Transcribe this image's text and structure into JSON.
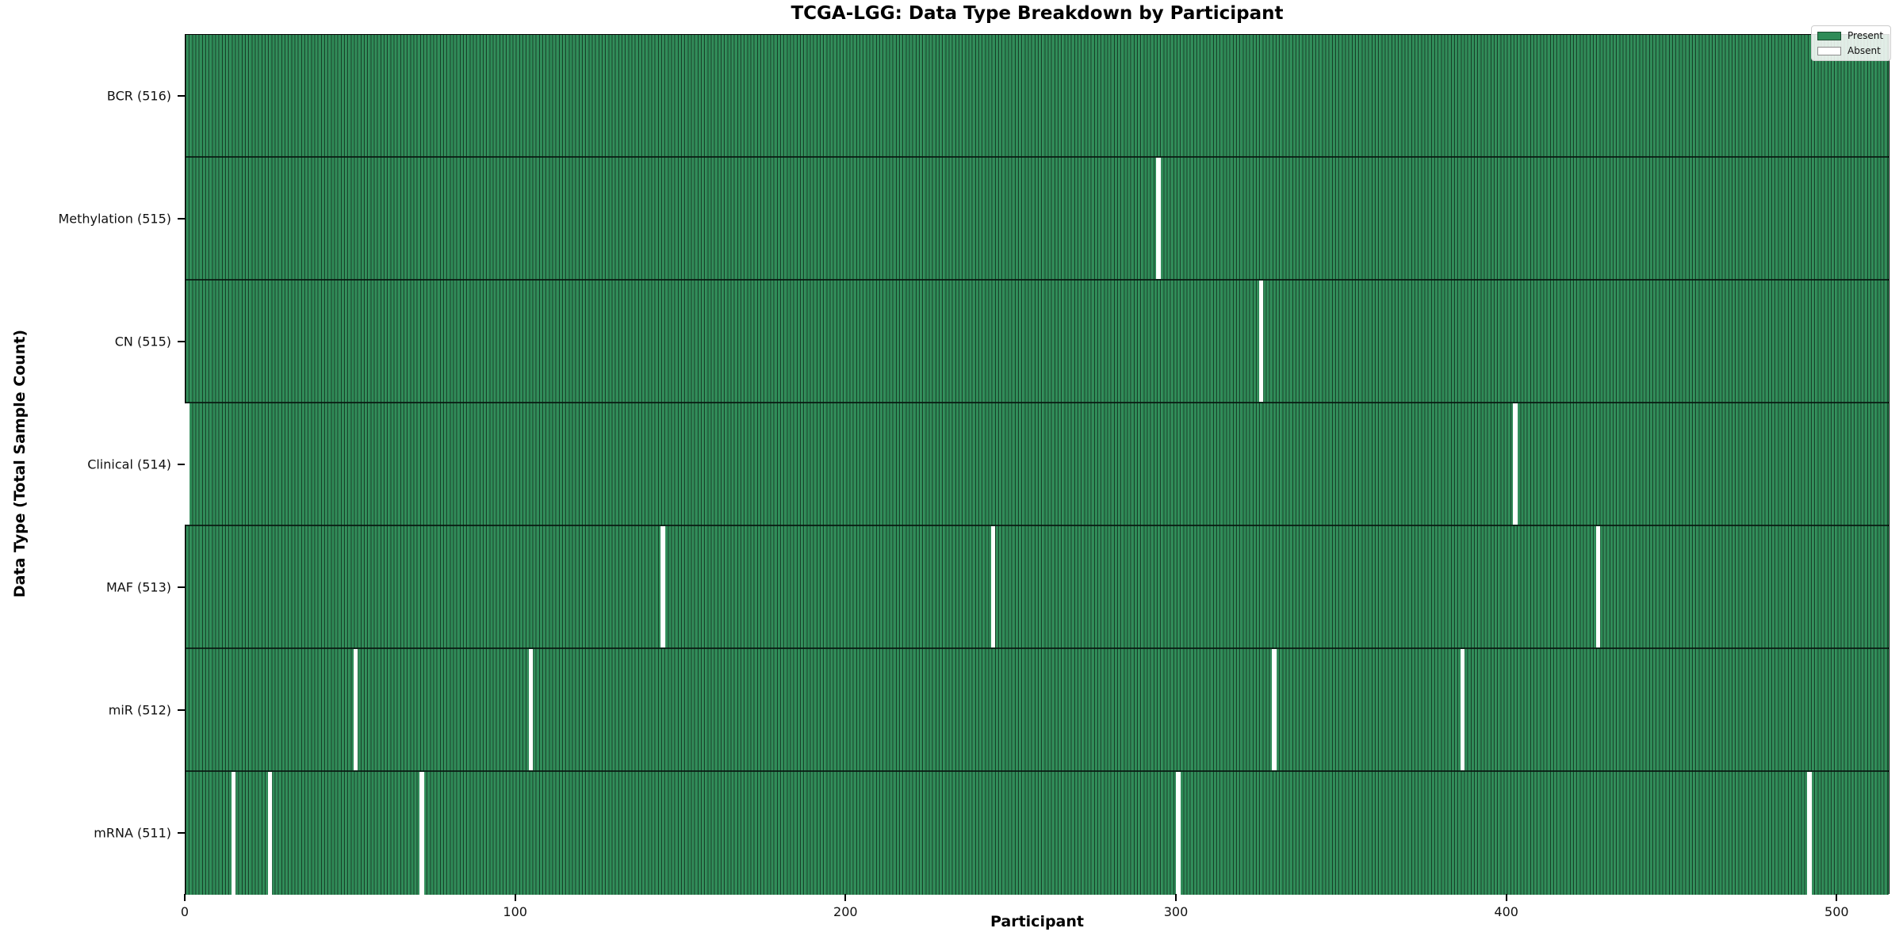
{
  "title": "TCGA-LGG: Data Type Breakdown by Participant",
  "axes": {
    "xlabel": "Participant",
    "ylabel": "Data Type (Total Sample Count)"
  },
  "legend": {
    "items": [
      {
        "label": "Present",
        "color": "#2e8b57"
      },
      {
        "label": "Absent",
        "color": "#ffffff"
      }
    ]
  },
  "chart_data": {
    "type": "heatmap",
    "title": "TCGA-LGG: Data Type Breakdown by Participant",
    "xlabel": "Participant",
    "ylabel": "Data Type (Total Sample Count)",
    "legend": [
      "Present",
      "Absent"
    ],
    "legend_position": "upper right",
    "grid": false,
    "n_participants": 516,
    "xlim": [
      0,
      516
    ],
    "x_ticks": [
      0,
      100,
      200,
      300,
      400,
      500
    ],
    "present_color": "#2e8b57",
    "absent_color": "#ffffff",
    "rows": [
      {
        "label": "BCR (516)",
        "data_type": "BCR",
        "total": 516,
        "absent_participants": []
      },
      {
        "label": "Methylation (515)",
        "data_type": "Methylation",
        "total": 515,
        "absent_participants": [
          294
        ]
      },
      {
        "label": "CN (515)",
        "data_type": "CN",
        "total": 515,
        "absent_participants": [
          325
        ]
      },
      {
        "label": "Clinical (514)",
        "data_type": "Clinical",
        "total": 514,
        "absent_participants": [
          0,
          402
        ]
      },
      {
        "label": "MAF (513)",
        "data_type": "MAF",
        "total": 513,
        "absent_participants": [
          144,
          244,
          427
        ]
      },
      {
        "label": "miR (512)",
        "data_type": "miR",
        "total": 512,
        "absent_participants": [
          51,
          104,
          329,
          386
        ]
      },
      {
        "label": "mRNA (511)",
        "data_type": "mRNA",
        "total": 511,
        "absent_participants": [
          14,
          25,
          71,
          300,
          491
        ]
      }
    ]
  }
}
